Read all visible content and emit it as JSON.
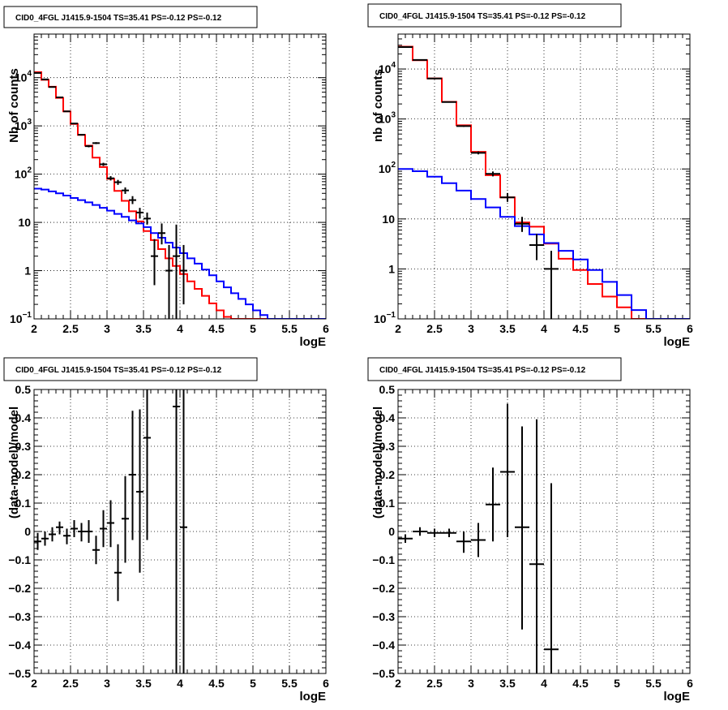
{
  "chart_data": [
    {
      "type": "line",
      "title": "CID0_4FGL J1415.9-1504 TS=35.41 PS=-0.12 PS=-0.12",
      "xlabel": "logE",
      "ylabel": "Nb of counts",
      "xlim": [
        2,
        6
      ],
      "ylim": [
        0.1,
        80000
      ],
      "yscale": "log",
      "grid": true,
      "xticks": [
        "2",
        "2.5",
        "3",
        "3.5",
        "4",
        "4.5",
        "5",
        "5.5",
        "6"
      ],
      "yticks": [
        {
          "value": 0.1,
          "label": "10",
          "sup": "−1"
        },
        {
          "value": 1,
          "label": "1",
          "sup": ""
        },
        {
          "value": 10,
          "label": "10",
          "sup": ""
        },
        {
          "value": 100,
          "label": "10",
          "sup": "2"
        },
        {
          "value": 1000,
          "label": "10",
          "sup": "3"
        },
        {
          "value": 10000,
          "label": "10",
          "sup": "4"
        }
      ],
      "bin_edges_start": 2.0,
      "bin_width": 0.1,
      "series": [
        {
          "color": "#ff0000",
          "values": [
            13000,
            9000,
            6500,
            3800,
            2000,
            1100,
            650,
            390,
            220,
            140,
            80,
            45,
            28,
            17,
            10.5,
            6.6,
            4.3,
            2.8,
            1.8,
            1.25,
            0.85,
            0.6,
            0.42,
            0.3,
            0.21,
            0.15,
            0.11,
            0.1,
            0.1,
            0.1,
            0.1,
            0.1,
            0.1,
            0.1,
            0.1,
            0.1,
            0.1,
            0.1,
            0.1,
            0.1
          ]
        },
        {
          "color": "#0000ff",
          "values": [
            50,
            48,
            44,
            40,
            36,
            32,
            29,
            26,
            23,
            20,
            17.5,
            15,
            13,
            11,
            9.5,
            8,
            6,
            4.8,
            3.8,
            3,
            2.3,
            1.8,
            1.4,
            1.05,
            0.8,
            0.6,
            0.45,
            0.34,
            0.26,
            0.2,
            0.15,
            0.12,
            0.1,
            0.1,
            0.1,
            0.1,
            0.1,
            0.1,
            0.1,
            0.1
          ]
        }
      ],
      "points": [
        {
          "x": 2.05,
          "y": 12500,
          "ylo": 12300,
          "yhi": 12700
        },
        {
          "x": 2.15,
          "y": 9200,
          "ylo": 9000,
          "yhi": 9400
        },
        {
          "x": 2.25,
          "y": 6400,
          "ylo": 6250,
          "yhi": 6550
        },
        {
          "x": 2.35,
          "y": 3900,
          "ylo": 3800,
          "yhi": 4000
        },
        {
          "x": 2.45,
          "y": 2000,
          "ylo": 1950,
          "yhi": 2050
        },
        {
          "x": 2.55,
          "y": 1120,
          "ylo": 1090,
          "yhi": 1150
        },
        {
          "x": 2.65,
          "y": 655,
          "ylo": 630,
          "yhi": 680
        },
        {
          "x": 2.75,
          "y": 380,
          "ylo": 360,
          "yhi": 400
        },
        {
          "x": 2.85,
          "y": 440,
          "ylo": 420,
          "yhi": 460
        },
        {
          "x": 2.95,
          "y": 160,
          "ylo": 148,
          "yhi": 172
        },
        {
          "x": 3.05,
          "y": 82,
          "ylo": 74,
          "yhi": 91
        },
        {
          "x": 3.15,
          "y": 68,
          "ylo": 60,
          "yhi": 76
        },
        {
          "x": 3.25,
          "y": 46,
          "ylo": 39,
          "yhi": 53
        },
        {
          "x": 3.35,
          "y": 29,
          "ylo": 24,
          "yhi": 35
        },
        {
          "x": 3.45,
          "y": 16,
          "ylo": 12,
          "yhi": 20
        },
        {
          "x": 3.55,
          "y": 12,
          "ylo": 9,
          "yhi": 16
        },
        {
          "x": 3.65,
          "y": 2,
          "ylo": 0.5,
          "yhi": 4.5
        },
        {
          "x": 3.75,
          "y": 6,
          "ylo": 3.5,
          "yhi": 9.5
        },
        {
          "x": 3.85,
          "y": 1,
          "ylo": 0.1,
          "yhi": 3.4
        },
        {
          "x": 3.95,
          "y": 2,
          "ylo": 0.1,
          "yhi": 9
        },
        {
          "x": 4.05,
          "y": 1,
          "ylo": 0.2,
          "yhi": 3.4
        }
      ]
    },
    {
      "type": "line",
      "title": "CID0_4FGL J1415.9-1504 TS=35.41 PS=-0.12 PS=-0.12",
      "xlabel": "logE",
      "ylabel": "nb of counts",
      "xlim": [
        2,
        6
      ],
      "ylim": [
        0.1,
        50000
      ],
      "yscale": "log",
      "grid": true,
      "xticks": [
        "2",
        "2.5",
        "3",
        "3.5",
        "4",
        "4.5",
        "5",
        "5.5",
        "6"
      ],
      "yticks": [
        {
          "value": 0.1,
          "label": "10",
          "sup": "−1"
        },
        {
          "value": 1,
          "label": "1",
          "sup": ""
        },
        {
          "value": 10,
          "label": "10",
          "sup": ""
        },
        {
          "value": 100,
          "label": "10",
          "sup": "2"
        },
        {
          "value": 1000,
          "label": "10",
          "sup": "3"
        },
        {
          "value": 10000,
          "label": "10",
          "sup": "4"
        }
      ],
      "bin_edges_start": 2.0,
      "bin_width": 0.2,
      "series": [
        {
          "color": "#ff0000",
          "values": [
            28000,
            15000,
            6500,
            2200,
            750,
            220,
            75,
            27,
            8.5,
            7,
            3.2,
            1.6,
            0.95,
            0.5,
            0.28,
            0.17,
            0.1,
            0.1,
            0.1,
            0.1
          ]
        },
        {
          "color": "#0000ff",
          "values": [
            100,
            90,
            70,
            52,
            37,
            25,
            17,
            11,
            7.2,
            4.9,
            3.3,
            2.3,
            1.55,
            0.95,
            0.55,
            0.3,
            0.15,
            0.1,
            0.1,
            0.1
          ]
        }
      ],
      "points": [
        {
          "x": 2.1,
          "y": 27500,
          "ylo": 27200,
          "yhi": 27800
        },
        {
          "x": 2.3,
          "y": 15200,
          "ylo": 15000,
          "yhi": 15400
        },
        {
          "x": 2.5,
          "y": 6450,
          "ylo": 6350,
          "yhi": 6550
        },
        {
          "x": 2.7,
          "y": 2180,
          "ylo": 2140,
          "yhi": 2220
        },
        {
          "x": 2.9,
          "y": 720,
          "ylo": 695,
          "yhi": 745
        },
        {
          "x": 3.1,
          "y": 210,
          "ylo": 196,
          "yhi": 224
        },
        {
          "x": 3.3,
          "y": 80,
          "ylo": 71,
          "yhi": 89
        },
        {
          "x": 3.5,
          "y": 27,
          "ylo": 22,
          "yhi": 33
        },
        {
          "x": 3.7,
          "y": 8,
          "ylo": 5.5,
          "yhi": 11
        },
        {
          "x": 3.9,
          "y": 3,
          "ylo": 1.5,
          "yhi": 5
        },
        {
          "x": 4.1,
          "y": 1,
          "ylo": 0.1,
          "yhi": 2.3
        }
      ]
    },
    {
      "type": "scatter",
      "title": "CID0_4FGL J1415.9-1504 TS=35.41 PS=-0.12 PS=-0.12",
      "xlabel": "logE",
      "ylabel": "(data-model)/model",
      "xlim": [
        2,
        6
      ],
      "ylim": [
        -0.5,
        0.5
      ],
      "yscale": "linear",
      "grid": true,
      "xticks": [
        "2",
        "2.5",
        "3",
        "3.5",
        "4",
        "4.5",
        "5",
        "5.5",
        "6"
      ],
      "yticks": [
        "−0.5",
        "−0.4",
        "−0.3",
        "−0.2",
        "−0.1",
        "0",
        "0.1",
        "0.2",
        "0.3",
        "0.4",
        "0.5"
      ],
      "yticks_values": [
        -0.5,
        -0.4,
        -0.3,
        -0.2,
        -0.1,
        0,
        0.1,
        0.2,
        0.3,
        0.4,
        0.5
      ],
      "xerr": 0.05,
      "points": [
        {
          "x": 2.05,
          "y": -0.035,
          "ylo": -0.065,
          "yhi": -0.005
        },
        {
          "x": 2.15,
          "y": -0.025,
          "ylo": -0.05,
          "yhi": 0.0
        },
        {
          "x": 2.25,
          "y": -0.01,
          "ylo": -0.035,
          "yhi": 0.015
        },
        {
          "x": 2.35,
          "y": 0.015,
          "ylo": -0.01,
          "yhi": 0.035
        },
        {
          "x": 2.45,
          "y": -0.015,
          "ylo": -0.045,
          "yhi": 0.01
        },
        {
          "x": 2.55,
          "y": 0.01,
          "ylo": -0.02,
          "yhi": 0.04
        },
        {
          "x": 2.65,
          "y": 0.0,
          "ylo": -0.035,
          "yhi": 0.03
        },
        {
          "x": 2.75,
          "y": 0.0,
          "ylo": -0.04,
          "yhi": 0.04
        },
        {
          "x": 2.85,
          "y": -0.065,
          "ylo": -0.115,
          "yhi": -0.015
        },
        {
          "x": 2.95,
          "y": 0.01,
          "ylo": -0.055,
          "yhi": 0.075
        },
        {
          "x": 3.05,
          "y": 0.03,
          "ylo": -0.055,
          "yhi": 0.11
        },
        {
          "x": 3.15,
          "y": -0.145,
          "ylo": -0.245,
          "yhi": -0.045
        },
        {
          "x": 3.25,
          "y": 0.045,
          "ylo": -0.11,
          "yhi": 0.195
        },
        {
          "x": 3.35,
          "y": 0.2,
          "ylo": -0.03,
          "yhi": 0.425
        },
        {
          "x": 3.45,
          "y": 0.14,
          "ylo": -0.145,
          "yhi": 0.43
        },
        {
          "x": 3.55,
          "y": 0.33,
          "ylo": -0.03,
          "yhi": 0.5
        },
        {
          "x": 3.95,
          "y": 0.44,
          "ylo": -0.5,
          "yhi": 0.5
        },
        {
          "x": 4.05,
          "y": 0.015,
          "ylo": -0.5,
          "yhi": 0.5
        }
      ]
    },
    {
      "type": "scatter",
      "title": "CID0_4FGL J1415.9-1504 TS=35.41 PS=-0.12 PS=-0.12",
      "xlabel": "logE",
      "ylabel": "(data-model)/model",
      "xlim": [
        2,
        6
      ],
      "ylim": [
        -0.5,
        0.5
      ],
      "yscale": "linear",
      "grid": true,
      "xticks": [
        "2",
        "2.5",
        "3",
        "3.5",
        "4",
        "4.5",
        "5",
        "5.5",
        "6"
      ],
      "yticks": [
        "−0.5",
        "−0.4",
        "−0.3",
        "−0.2",
        "−0.1",
        "0",
        "0.1",
        "0.2",
        "0.3",
        "0.4",
        "0.5"
      ],
      "yticks_values": [
        -0.5,
        -0.4,
        -0.3,
        -0.2,
        -0.1,
        0,
        0.1,
        0.2,
        0.3,
        0.4,
        0.5
      ],
      "xerr": 0.1,
      "points": [
        {
          "x": 2.1,
          "y": -0.025,
          "ylo": -0.04,
          "yhi": -0.01
        },
        {
          "x": 2.3,
          "y": 0.0,
          "ylo": -0.015,
          "yhi": 0.015
        },
        {
          "x": 2.5,
          "y": -0.005,
          "ylo": -0.02,
          "yhi": 0.01
        },
        {
          "x": 2.7,
          "y": -0.005,
          "ylo": -0.02,
          "yhi": 0.01
        },
        {
          "x": 2.9,
          "y": -0.035,
          "ylo": -0.075,
          "yhi": 0.0
        },
        {
          "x": 3.1,
          "y": -0.03,
          "ylo": -0.09,
          "yhi": 0.03
        },
        {
          "x": 3.3,
          "y": 0.095,
          "ylo": -0.035,
          "yhi": 0.225
        },
        {
          "x": 3.5,
          "y": 0.21,
          "ylo": -0.02,
          "yhi": 0.45
        },
        {
          "x": 3.7,
          "y": 0.015,
          "ylo": -0.345,
          "yhi": 0.37
        },
        {
          "x": 3.9,
          "y": -0.115,
          "ylo": -0.5,
          "yhi": 0.395
        },
        {
          "x": 4.1,
          "y": -0.415,
          "ylo": -0.5,
          "yhi": 0.17
        }
      ]
    }
  ]
}
